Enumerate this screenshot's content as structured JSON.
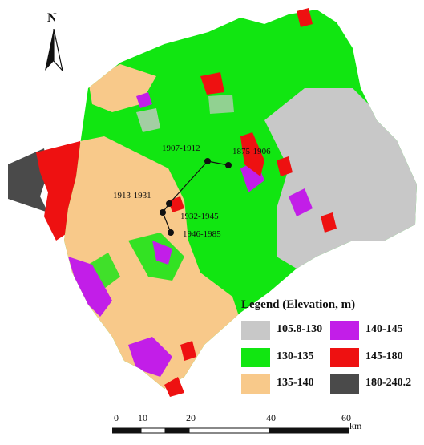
{
  "north_arrow": {
    "letter": "N",
    "icon": "north-arrow-icon"
  },
  "legend": {
    "title": "Legend (Elevation, m)",
    "items": [
      {
        "label": "105.8-130",
        "color": "#c8c8c8"
      },
      {
        "label": "130-135",
        "color": "#11e611"
      },
      {
        "label": "135-140",
        "color": "#f8c98a"
      },
      {
        "label": "140-145",
        "color": "#c21ee8"
      },
      {
        "label": "145-180",
        "color": "#ee1111"
      },
      {
        "label": "180-240.2",
        "color": "#4a4a4a"
      }
    ]
  },
  "migration_path": {
    "points": [
      {
        "label": "1875-1906"
      },
      {
        "label": "1907-1912"
      },
      {
        "label": "1913-1931"
      },
      {
        "label": "1932-1945"
      },
      {
        "label": "1946-1985"
      }
    ]
  },
  "scale_bar": {
    "ticks": [
      "0",
      "10",
      "20",
      "40",
      "60"
    ],
    "tick_values": [
      0,
      10,
      20,
      40,
      60
    ],
    "unit": "km"
  }
}
